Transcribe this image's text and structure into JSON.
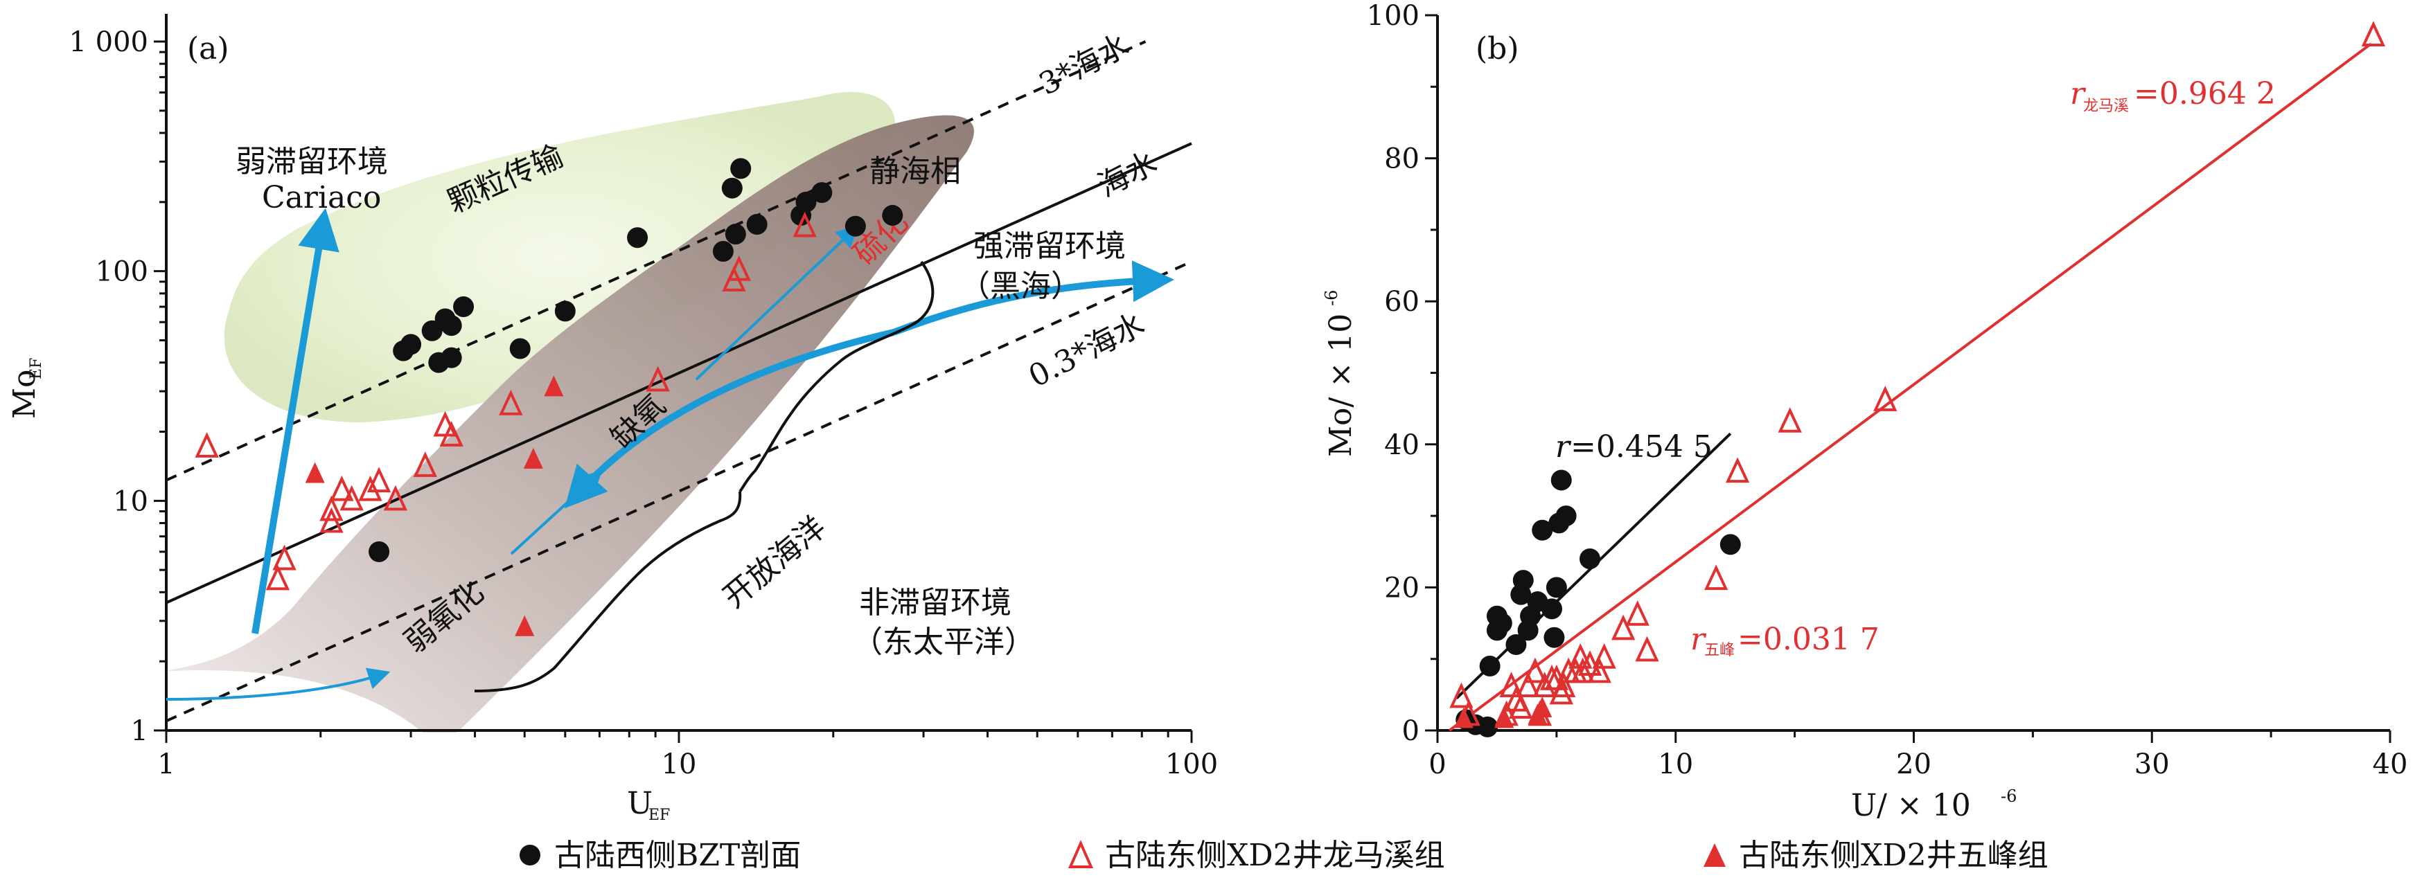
{
  "colors": {
    "black_series": "#111111",
    "red_series": "#e03030",
    "arrow_blue": "#1a9ad6",
    "green_zone": "#e7f1d2",
    "brown_zone": "#9e8c86"
  },
  "legend": {
    "items": [
      {
        "label": "古陆西侧BZT剖面",
        "marker": "circle-filled",
        "color": "#111111"
      },
      {
        "label": "古陆东侧XD2井龙马溪组",
        "marker": "triangle-open",
        "color": "#e03030"
      },
      {
        "label": "古陆东侧XD2井五峰组",
        "marker": "triangle-filled",
        "color": "#e03030"
      }
    ]
  },
  "panel_a": {
    "panel_label": "(a)",
    "x_label_main": "U",
    "x_label_sub": "EF",
    "y_label_main": "Mo",
    "y_label_sub": "EF",
    "x_ticks": [
      "1",
      "10",
      "100"
    ],
    "y_ticks": [
      "1",
      "10",
      "100",
      "1 000"
    ],
    "annotations": {
      "weak_retention": "弱滞留环境",
      "cariaco": "Cariaco",
      "particle_transport": "颗粒传输",
      "euxinic": "静海相",
      "sulfidation": "硫化",
      "seawater3": "3*海水",
      "seawater": "海水",
      "strong_retention": "强滞留环境",
      "black_sea": "（黑海）",
      "seawater03": "0.3*海水",
      "anoxic": "缺氧",
      "weak_oxidation": "弱氧化",
      "open_ocean": "开放海洋",
      "non_retention": "非滞留环境",
      "east_pacific": "（东太平洋）"
    }
  },
  "panel_b": {
    "panel_label": "(b)",
    "x_label": "U/ × 10",
    "x_label_exp": "-6",
    "y_label": "Mo/ × 10",
    "y_label_exp": "-6",
    "x_ticks": [
      "0",
      "10",
      "20",
      "30",
      "40"
    ],
    "y_ticks": [
      "0",
      "20",
      "40",
      "60",
      "80",
      "100"
    ],
    "r_black": {
      "r": "r",
      "sub": "",
      "value": "=0.454 5"
    },
    "r_longmaxi": {
      "r": "r",
      "sub": "龙马溪",
      "value": "=0.964 2"
    },
    "r_wufeng": {
      "r": "r",
      "sub": "五峰",
      "value": "=0.031 7"
    }
  },
  "chart_data": [
    {
      "type": "scatter",
      "panel": "(a)",
      "x_scale": "log",
      "y_scale": "log",
      "xlabel": "UEF",
      "ylabel": "MoEF",
      "xlim": [
        1,
        100
      ],
      "ylim": [
        1,
        1000
      ],
      "reference_lines": [
        {
          "name": "3*海水",
          "slope_loglog": 1,
          "mo_at_u1": 12.3
        },
        {
          "name": "海水",
          "slope_loglog": 1,
          "mo_at_u1": 3.6
        },
        {
          "name": "0.3*海水",
          "slope_loglog": 1,
          "mo_at_u1": 1.1
        }
      ],
      "series": [
        {
          "name": "古陆西侧BZT剖面",
          "marker": "circle-filled",
          "points": [
            [
              2.6,
              6
            ],
            [
              2.9,
              45
            ],
            [
              3.0,
              48
            ],
            [
              3.3,
              55
            ],
            [
              3.4,
              40
            ],
            [
              3.5,
              62
            ],
            [
              3.6,
              58
            ],
            [
              3.6,
              42
            ],
            [
              3.8,
              70
            ],
            [
              4.9,
              46
            ],
            [
              6.0,
              67
            ],
            [
              8.3,
              140
            ],
            [
              12.2,
              122
            ],
            [
              12.7,
              230
            ],
            [
              12.9,
              145
            ],
            [
              13.2,
              280
            ],
            [
              14.2,
              160
            ],
            [
              17.3,
              175
            ],
            [
              17.7,
              200
            ],
            [
              19,
              220
            ],
            [
              22.1,
              157
            ],
            [
              26.1,
              175
            ]
          ]
        },
        {
          "name": "古陆东侧XD2井龙马溪组",
          "marker": "triangle-open",
          "points": [
            [
              1.2,
              17
            ],
            [
              1.65,
              4.5
            ],
            [
              1.7,
              5.5
            ],
            [
              2.1,
              9
            ],
            [
              2.1,
              8
            ],
            [
              2.2,
              11
            ],
            [
              2.3,
              10
            ],
            [
              2.5,
              11
            ],
            [
              2.6,
              12
            ],
            [
              2.8,
              10
            ],
            [
              3.2,
              14
            ],
            [
              3.5,
              21
            ],
            [
              3.6,
              19
            ],
            [
              4.7,
              26
            ],
            [
              9.1,
              33
            ],
            [
              12.8,
              90
            ],
            [
              13.1,
              100
            ],
            [
              17.6,
              155
            ]
          ]
        },
        {
          "name": "古陆东侧XD2井五峰组",
          "marker": "triangle-filled",
          "points": [
            [
              1.95,
              13
            ],
            [
              5.0,
              2.8
            ],
            [
              5.2,
              15
            ],
            [
              5.7,
              31
            ]
          ]
        }
      ]
    },
    {
      "type": "scatter",
      "panel": "(b)",
      "xlabel": "U/ × 10-6",
      "ylabel": "Mo/ × 10-6",
      "xlim": [
        0,
        40
      ],
      "ylim": [
        0,
        100
      ],
      "series": [
        {
          "name": "古陆西侧BZT剖面",
          "marker": "circle-filled",
          "points": [
            [
              1.2,
              1.5
            ],
            [
              1.6,
              0.8
            ],
            [
              2.1,
              0.5
            ],
            [
              2.2,
              9
            ],
            [
              2.5,
              16
            ],
            [
              2.5,
              14
            ],
            [
              2.7,
              15
            ],
            [
              3.3,
              12
            ],
            [
              3.5,
              19
            ],
            [
              3.6,
              21
            ],
            [
              3.8,
              14
            ],
            [
              3.9,
              16
            ],
            [
              4.2,
              18
            ],
            [
              4.4,
              28
            ],
            [
              4.8,
              17
            ],
            [
              4.9,
              13
            ],
            [
              5.0,
              20
            ],
            [
              5.2,
              35
            ],
            [
              5.4,
              30
            ],
            [
              5.1,
              29
            ],
            [
              6.4,
              24
            ],
            [
              12.3,
              26
            ]
          ],
          "fit_line": {
            "r": 0.4545,
            "from": [
              0.8,
              4.5
            ],
            "to": [
              12.3,
              41.5
            ]
          }
        },
        {
          "name": "古陆东侧XD2井龙马溪组",
          "marker": "triangle-open",
          "points": [
            [
              1.0,
              4.5
            ],
            [
              1.3,
              2
            ],
            [
              2.9,
              2
            ],
            [
              3.1,
              6
            ],
            [
              3.3,
              4
            ],
            [
              3.5,
              3
            ],
            [
              3.8,
              6
            ],
            [
              4.1,
              8
            ],
            [
              4.3,
              2
            ],
            [
              4.5,
              6
            ],
            [
              4.8,
              7
            ],
            [
              5.0,
              7
            ],
            [
              5.2,
              5
            ],
            [
              5.3,
              6
            ],
            [
              5.5,
              8
            ],
            [
              5.8,
              8
            ],
            [
              6.0,
              10
            ],
            [
              6.1,
              8
            ],
            [
              6.4,
              9
            ],
            [
              6.8,
              8
            ],
            [
              7.0,
              10
            ],
            [
              7.8,
              14
            ],
            [
              8.4,
              16
            ],
            [
              8.8,
              11
            ],
            [
              11.7,
              21
            ],
            [
              12.6,
              36
            ],
            [
              14.8,
              43
            ],
            [
              18.8,
              46
            ],
            [
              39.3,
              97
            ]
          ],
          "fit_line": {
            "r": 0.9642,
            "from": [
              0.5,
              0
            ],
            "to": [
              39.2,
              96
            ]
          }
        },
        {
          "name": "古陆东侧XD2井五峰组",
          "marker": "triangle-filled",
          "points": [
            [
              1.1,
              1.5
            ],
            [
              2.8,
              1.5
            ],
            [
              4.2,
              2
            ],
            [
              4.4,
              3
            ]
          ],
          "fit_line": {
            "r": 0.0317
          }
        }
      ]
    }
  ]
}
